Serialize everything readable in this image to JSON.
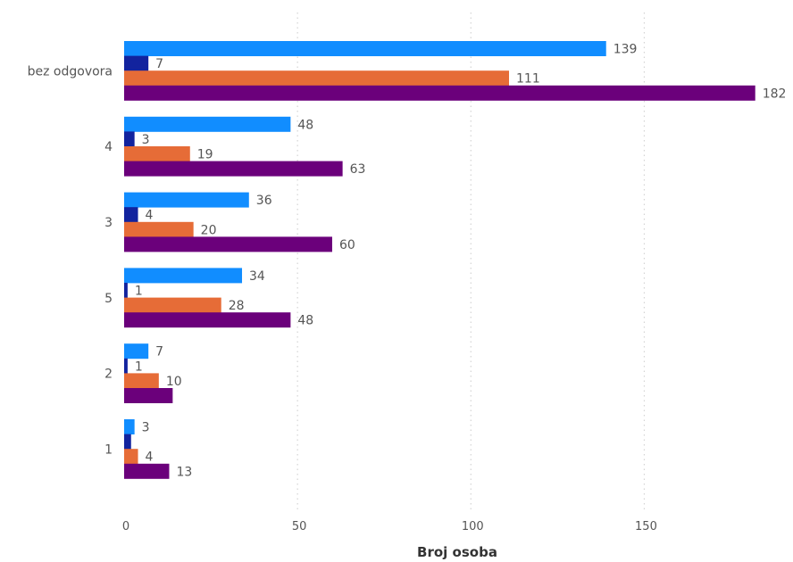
{
  "chart_data": {
    "type": "bar",
    "orientation": "horizontal",
    "title": "",
    "xlabel": "Broj osoba",
    "ylabel": "",
    "xlim": [
      0,
      182
    ],
    "x_ticks": [
      0,
      50,
      100,
      150
    ],
    "grid": "vertical dotted",
    "legend": "none",
    "categories": [
      "bez odgovora",
      "4",
      "3",
      "5",
      "2",
      "1"
    ],
    "series": [
      {
        "color": "#118DFF",
        "values": [
          139,
          48,
          36,
          34,
          7,
          3
        ],
        "labels": [
          "139",
          "48",
          "36",
          "34",
          "7",
          "3"
        ]
      },
      {
        "color": "#12239E",
        "values": [
          7,
          3,
          4,
          1,
          1,
          2
        ],
        "labels": [
          "7",
          "3",
          "4",
          "1",
          "1",
          ""
        ]
      },
      {
        "color": "#E66C37",
        "values": [
          111,
          19,
          20,
          28,
          10,
          4
        ],
        "labels": [
          "111",
          "19",
          "20",
          "28",
          "10",
          "4"
        ]
      },
      {
        "color": "#6B007B",
        "values": [
          182,
          63,
          60,
          48,
          14,
          13
        ],
        "labels": [
          "182",
          "63",
          "60",
          "48",
          "",
          "13"
        ]
      }
    ]
  }
}
